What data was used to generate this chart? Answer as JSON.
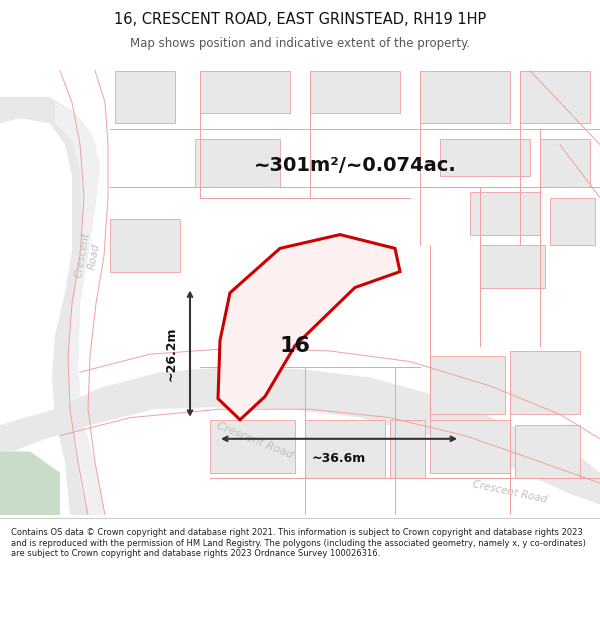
{
  "title_line1": "16, CRESCENT ROAD, EAST GRINSTEAD, RH19 1HP",
  "title_line2": "Map shows position and indicative extent of the property.",
  "footer_text": "Contains OS data © Crown copyright and database right 2021. This information is subject to Crown copyright and database rights 2023 and is reproduced with the permission of HM Land Registry. The polygons (including the associated geometry, namely x, y co-ordinates) are subject to Crown copyright and database rights 2023 Ordnance Survey 100026316.",
  "area_text": "~301m²/~0.074ac.",
  "label_16": "16",
  "dim_vertical": "~26.2m",
  "dim_horizontal": "~36.6m",
  "bg_color": "#f7f7f7",
  "block_fill": "#e8e8e8",
  "block_stroke": "#f0a0a0",
  "road_fill": "#e0e0e0",
  "road_stroke": "#f0a0a0",
  "green_fill": "#c8dcc8",
  "prop_fill": "#fdf0f0",
  "prop_stroke": "#cc0000",
  "dim_color": "#333333",
  "road_label_color": "#c0c0c0",
  "title_color": "#111111",
  "footer_color": "#222222",
  "figsize": [
    6.0,
    6.25
  ],
  "dpi": 100
}
